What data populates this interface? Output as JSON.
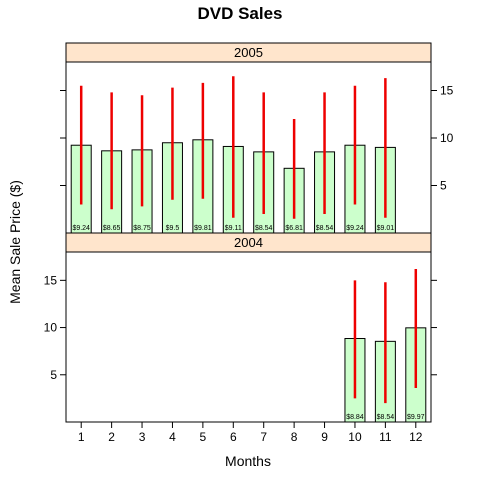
{
  "chart_data": {
    "type": "bar",
    "title": "DVD Sales",
    "xlabel": "Months",
    "ylabel": "Mean Sale Price ($)",
    "categories": [
      "1",
      "2",
      "3",
      "4",
      "5",
      "6",
      "7",
      "8",
      "9",
      "10",
      "11",
      "12"
    ],
    "ylim": [
      0,
      18
    ],
    "yticks": [
      5,
      10,
      15
    ],
    "grid": false,
    "bar_color": "#ccffcc",
    "error_color": "#ee0000",
    "strip_color": "#ffe5cc",
    "panels": [
      {
        "name": "2005",
        "values": [
          9.24,
          8.65,
          8.75,
          9.5,
          9.81,
          9.11,
          8.54,
          6.81,
          8.54,
          9.24,
          9.01,
          null
        ],
        "labels": [
          "$9.24",
          "$8.65",
          "$8.75",
          "$9.5",
          "$9.81",
          "$9.11",
          "$8.54",
          "$6.81",
          "$8.54",
          "$9.24",
          "$9.01",
          null
        ],
        "error_low": [
          3.0,
          2.5,
          2.8,
          3.5,
          3.6,
          1.6,
          2.0,
          1.5,
          2.0,
          3.0,
          1.6,
          null
        ],
        "error_high": [
          15.5,
          14.8,
          14.5,
          15.3,
          15.8,
          16.5,
          14.8,
          12.0,
          14.8,
          15.5,
          16.3,
          null
        ]
      },
      {
        "name": "2004",
        "values": [
          null,
          null,
          null,
          null,
          null,
          null,
          null,
          null,
          null,
          8.84,
          8.54,
          9.97
        ],
        "labels": [
          null,
          null,
          null,
          null,
          null,
          null,
          null,
          null,
          null,
          "$8.84",
          "$8.54",
          "$9.97"
        ],
        "error_low": [
          null,
          null,
          null,
          null,
          null,
          null,
          null,
          null,
          null,
          2.5,
          2.0,
          3.6
        ],
        "error_high": [
          null,
          null,
          null,
          null,
          null,
          null,
          null,
          null,
          null,
          15.0,
          14.8,
          16.2
        ]
      }
    ]
  }
}
